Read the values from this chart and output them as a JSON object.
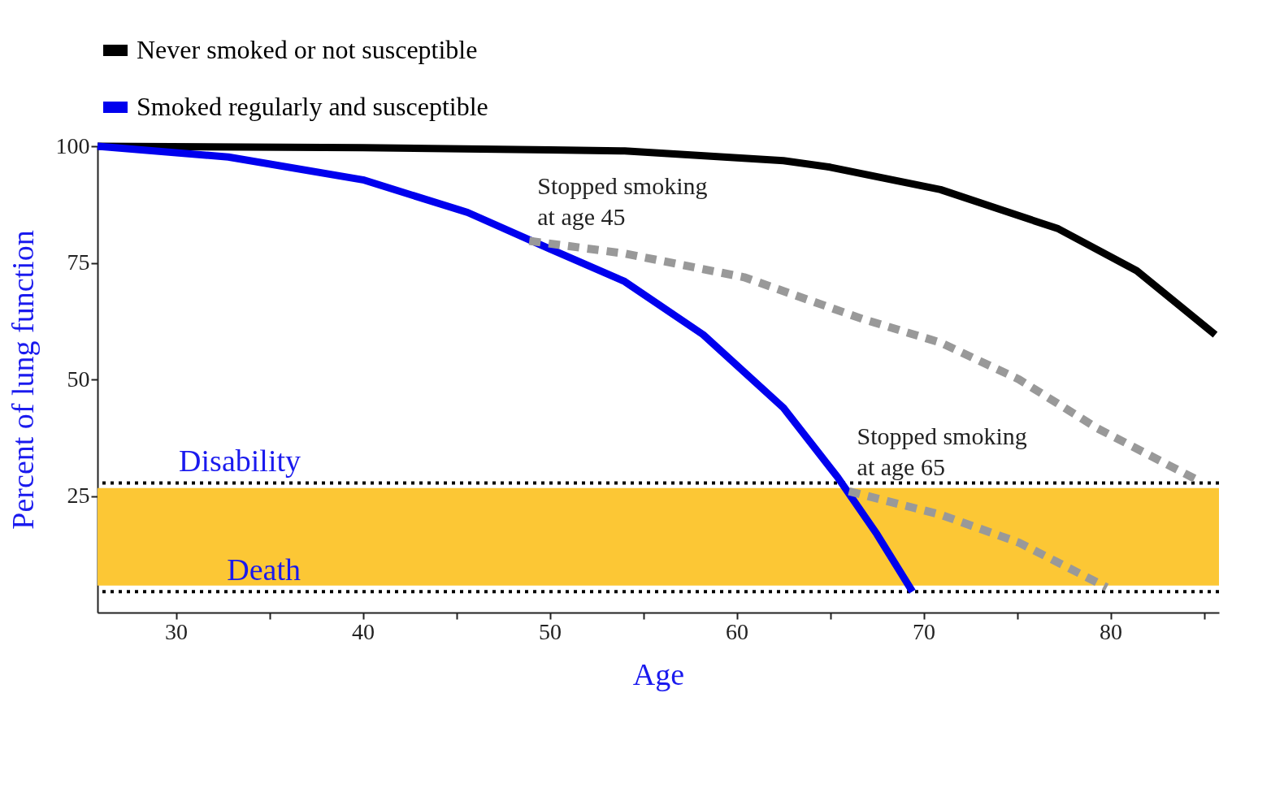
{
  "chart_data": {
    "type": "line",
    "xlabel": "Age",
    "ylabel": "Percent of lung function",
    "xlim": [
      25.8,
      85.8
    ],
    "ylim": [
      0,
      100
    ],
    "xticks": [
      30,
      {
        "value": 35,
        "label": null
      },
      40,
      {
        "value": 45,
        "label": null
      },
      50,
      {
        "value": 55,
        "label": null
      },
      60,
      {
        "value": 65,
        "label": null
      },
      70,
      {
        "value": 75,
        "label": null
      },
      80,
      {
        "value": 85,
        "label": null
      }
    ],
    "yticks": [
      25,
      50,
      75,
      100
    ],
    "grid": false,
    "legend": "top left",
    "series": [
      {
        "name": "Never smoked or not susceptible",
        "color": "#000000",
        "x": [
          25.8,
          40,
          50,
          54,
          62.5,
          65,
          70.9,
          77.2,
          81.4,
          85.6
        ],
        "values": [
          100,
          99.7,
          99.2,
          99,
          96.9,
          95.5,
          90.7,
          82.3,
          73.3,
          59.6
        ]
      },
      {
        "name": "Smoked regularly and susceptible",
        "color": "#0000ee",
        "x": [
          25.8,
          32.8,
          40,
          45.6,
          50,
          54,
          58.2,
          62.5,
          65.4,
          67.5,
          69.4
        ],
        "values": [
          100,
          97.7,
          92.8,
          85.8,
          78,
          71,
          59.6,
          43.9,
          29,
          16.8,
          4.5
        ]
      },
      {
        "color": "#999999",
        "line_style": "dashed",
        "x": [
          48.9,
          54,
          60.4,
          66.7,
          70.9,
          75.1,
          79.3,
          84.8
        ],
        "values": [
          79.7,
          77,
          71.9,
          63,
          57.9,
          50,
          39.5,
          28.1
        ]
      },
      {
        "color": "#999999",
        "line_style": "dashed",
        "x": [
          66,
          70.9,
          75.1,
          79.8
        ],
        "values": [
          26,
          21,
          15,
          5.4
        ]
      }
    ],
    "bands": [
      {
        "axis": "y",
        "from": 5.8,
        "to": 26.7,
        "color": "#fcc735"
      }
    ],
    "ref_lines": [
      {
        "axis": "y",
        "value": 27.8,
        "label": "Disability",
        "line_style": "dotted"
      },
      {
        "axis": "y",
        "value": 4.5,
        "label": "Death",
        "line_style": "dotted"
      }
    ],
    "annotations": [
      {
        "text": "Stopped smoking at age 45",
        "x": 48.9,
        "y": 79.7
      },
      {
        "text": "Stopped smoking at age 65",
        "x": 66,
        "y": 26
      }
    ]
  }
}
